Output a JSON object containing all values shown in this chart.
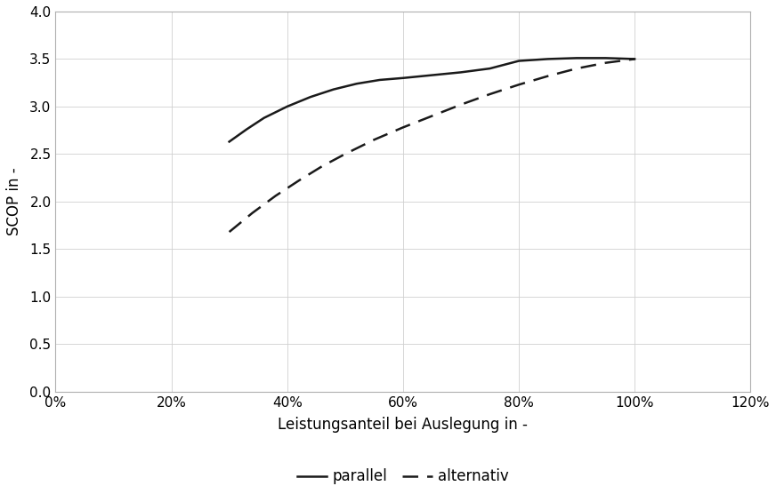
{
  "parallel_x": [
    0.3,
    0.33,
    0.36,
    0.4,
    0.44,
    0.48,
    0.52,
    0.56,
    0.6,
    0.65,
    0.7,
    0.75,
    0.8,
    0.85,
    0.9,
    0.95,
    1.0
  ],
  "parallel_y": [
    2.63,
    2.76,
    2.88,
    3.0,
    3.1,
    3.18,
    3.24,
    3.28,
    3.3,
    3.33,
    3.36,
    3.4,
    3.48,
    3.5,
    3.51,
    3.51,
    3.5
  ],
  "alternativ_x": [
    0.3,
    0.34,
    0.38,
    0.42,
    0.46,
    0.5,
    0.55,
    0.6,
    0.65,
    0.7,
    0.75,
    0.8,
    0.85,
    0.9,
    0.95,
    1.0
  ],
  "alternativ_y": [
    1.68,
    1.88,
    2.06,
    2.22,
    2.37,
    2.5,
    2.65,
    2.78,
    2.9,
    3.02,
    3.13,
    3.23,
    3.32,
    3.4,
    3.46,
    3.5
  ],
  "xlabel": "Leistungsanteil bei Auslegung in -",
  "ylabel": "SCOP in -",
  "xlim": [
    0.0,
    1.2
  ],
  "ylim": [
    0.0,
    4.0
  ],
  "xticks": [
    0.0,
    0.2,
    0.4,
    0.6,
    0.8,
    1.0,
    1.2
  ],
  "yticks": [
    0.0,
    0.5,
    1.0,
    1.5,
    2.0,
    2.5,
    3.0,
    3.5,
    4.0
  ],
  "line_color": "#1a1a1a",
  "background_color": "#ffffff",
  "grid_color": "#d0d0d0",
  "spine_color": "#b0b0b0",
  "legend_parallel": "parallel",
  "legend_alternativ": "alternativ",
  "legend_fontsize": 12,
  "axis_label_fontsize": 12,
  "tick_fontsize": 11
}
